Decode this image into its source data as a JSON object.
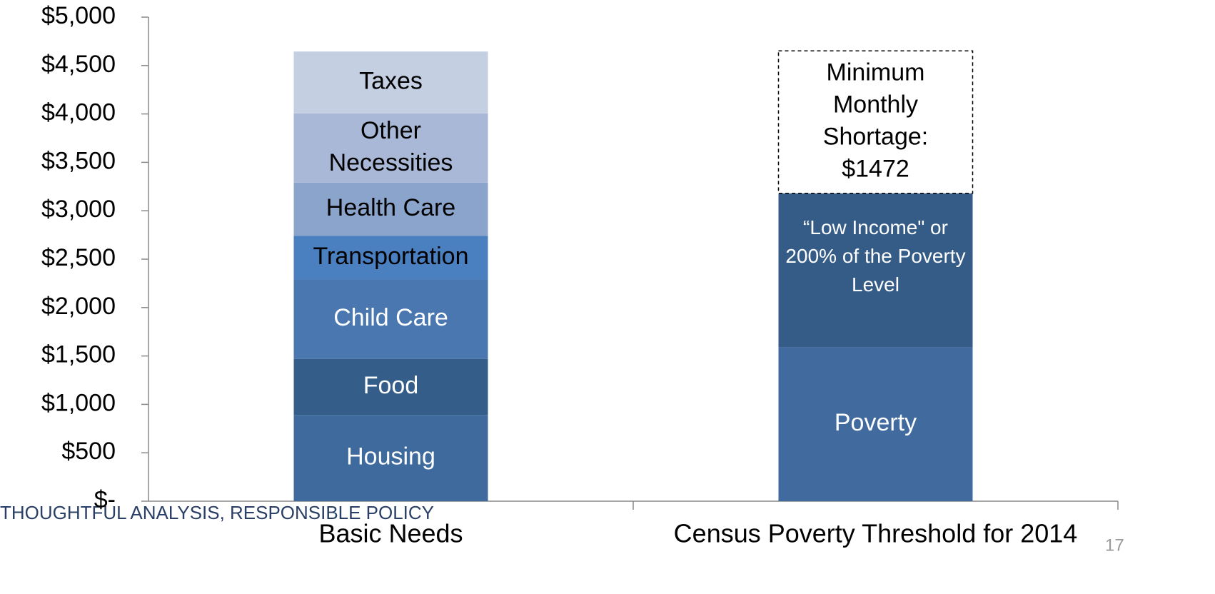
{
  "chart_data": {
    "type": "stacked_bar",
    "categories": [
      "Basic Needs",
      "Census Poverty Threshold for 2014"
    ],
    "ylim": [
      0,
      5000
    ],
    "yticks": [
      {
        "value": 0,
        "label": "$-"
      },
      {
        "value": 500,
        "label": "$500"
      },
      {
        "value": 1000,
        "label": "$1,000"
      },
      {
        "value": 1500,
        "label": "$1,500"
      },
      {
        "value": 2000,
        "label": "$2,000"
      },
      {
        "value": 2500,
        "label": "$2,500"
      },
      {
        "value": 3000,
        "label": "$3,000"
      },
      {
        "value": 3500,
        "label": "$3,500"
      },
      {
        "value": 4000,
        "label": "$4,000"
      },
      {
        "value": 4500,
        "label": "$4,500"
      },
      {
        "value": 5000,
        "label": "$5,000"
      }
    ],
    "series": [
      {
        "name": "Housing",
        "color": "#3f6a9e",
        "label_color": "#ffffff",
        "values": [
          890,
          null
        ]
      },
      {
        "name": "Food",
        "color": "#355d8a",
        "label_color": "#ffffff",
        "values": [
          580,
          null
        ]
      },
      {
        "name": "Child Care",
        "color": "#4a77b0",
        "label_color": "#ffffff",
        "values": [
          820,
          null
        ]
      },
      {
        "name": "Transportation",
        "color": "#4a7fc0",
        "label_color": "#000000",
        "values": [
          450,
          null
        ]
      },
      {
        "name": "Health Care",
        "color": "#8ba4cc",
        "label_color": "#000000",
        "values": [
          550,
          null
        ]
      },
      {
        "name": "Other Necessities",
        "color": "#a9b8d7",
        "label_color": "#000000",
        "values": [
          715,
          null
        ]
      },
      {
        "name": "Taxes",
        "color": "#c4cfe2",
        "label_color": "#000000",
        "values": [
          640,
          null
        ]
      },
      {
        "name": "Poverty",
        "color": "#416b9f",
        "label_color": "#ffffff",
        "values": [
          null,
          1590
        ]
      },
      {
        "name": "“Low Income\" or 200% of the Poverty Level",
        "color": "#355b87",
        "label_color": "#ffffff",
        "values": [
          null,
          1590
        ]
      },
      {
        "name": "Minimum Monthly Shortage:",
        "color": "#ffffff",
        "label_color": "#000000",
        "dashed": true,
        "values": [
          null,
          1472
        ],
        "value_labels": [
          null,
          "$1472"
        ]
      }
    ],
    "footer": "THOUGHTFUL ANALYSIS, RESPONSIBLE POLICY",
    "page_number": "17"
  }
}
